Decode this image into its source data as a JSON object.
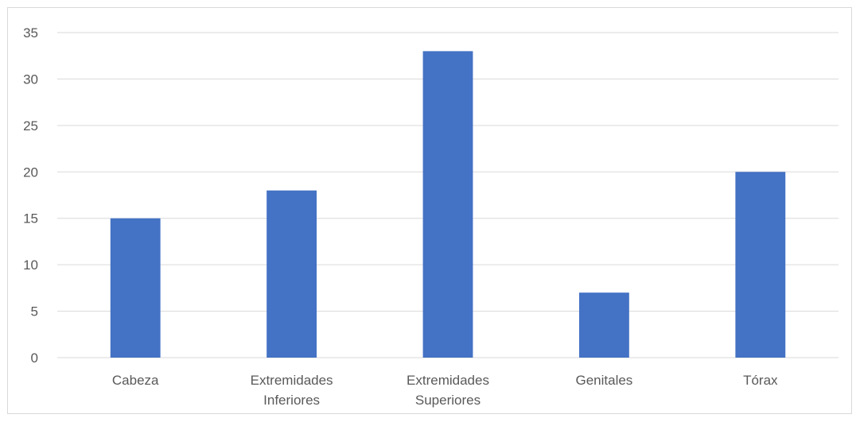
{
  "chart_data": {
    "type": "bar",
    "title": "",
    "xlabel": "",
    "ylabel": "",
    "categories": [
      [
        "Cabeza"
      ],
      [
        "Extremidades",
        "Inferiores"
      ],
      [
        "Extremidades",
        "Superiores"
      ],
      [
        "Genitales"
      ],
      [
        "Tórax"
      ]
    ],
    "values": [
      15,
      18,
      33,
      7,
      20
    ],
    "ylim": [
      0,
      35
    ],
    "yticks": [
      "0",
      "5",
      "10",
      "15",
      "20",
      "25",
      "30",
      "35"
    ],
    "grid": true,
    "legend": "none",
    "bar_color": "#4472c4",
    "grid_color": "#d9d9d9",
    "text_color": "#595959"
  }
}
